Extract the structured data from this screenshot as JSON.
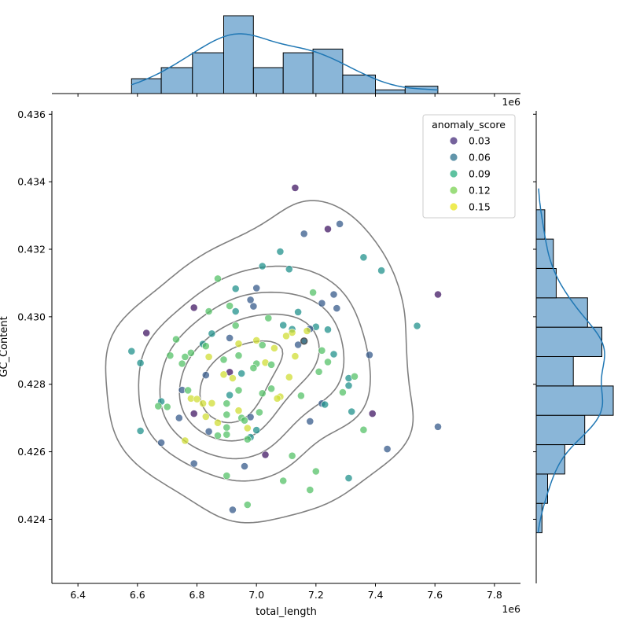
{
  "chart_data": {
    "type": "scatter",
    "xlabel": "total_length",
    "ylabel": "GC_Content",
    "x_offset_label": "1e6",
    "xlim": [
      6.3124,
      7.8876
    ],
    "ylim": [
      0.4221,
      0.4361
    ],
    "x_ticks": [
      6.4,
      6.6,
      6.8,
      7.0,
      7.2,
      7.4,
      7.6,
      7.8
    ],
    "x_tick_labels": [
      "6.4",
      "6.6",
      "6.8",
      "7.0",
      "7.2",
      "7.4",
      "7.6",
      "7.8"
    ],
    "y_ticks": [
      0.424,
      0.426,
      0.428,
      0.43,
      0.432,
      0.434,
      0.436
    ],
    "y_tick_labels": [
      "0.424",
      "0.426",
      "0.428",
      "0.430",
      "0.432",
      "0.434",
      "0.436"
    ],
    "legend": {
      "title": "anomaly_score",
      "position": "top-right",
      "entries": [
        {
          "label": "0.03",
          "color": "#472d7b"
        },
        {
          "label": "0.06",
          "color": "#2c728e"
        },
        {
          "label": "0.09",
          "color": "#28ae80"
        },
        {
          "label": "0.12",
          "color": "#7ad151"
        },
        {
          "label": "0.15",
          "color": "#e8e419"
        }
      ]
    },
    "colors": {
      "hist": "#8ab6d8",
      "kde": "#1f77b4",
      "contour": "#808080"
    },
    "marginal_x_hist": {
      "bin_edges": [
        6.58,
        6.68,
        6.785,
        6.89,
        6.99,
        7.09,
        7.19,
        7.29,
        7.4,
        7.5,
        7.61
      ],
      "counts": [
        4,
        7,
        11,
        21,
        7,
        11,
        12,
        5,
        1,
        2
      ]
    },
    "marginal_y_hist": {
      "bin_edges": [
        0.4236,
        0.42447,
        0.42534,
        0.42621,
        0.42708,
        0.42795,
        0.42882,
        0.42969,
        0.43056,
        0.43143,
        0.4323,
        0.43317
      ],
      "counts": [
        2,
        4,
        10,
        17,
        27,
        13,
        23,
        18,
        7,
        6,
        3,
        1
      ]
    },
    "points": [
      [
        7.13,
        0.43382,
        0.03
      ],
      [
        7.28,
        0.43275,
        0.06
      ],
      [
        7.24,
        0.4326,
        0.03
      ],
      [
        7.16,
        0.43246,
        0.06
      ],
      [
        6.63,
        0.42952,
        0.03
      ],
      [
        7.61,
        0.43066,
        0.03
      ],
      [
        7.08,
        0.43193,
        0.09
      ],
      [
        7.36,
        0.43176,
        0.09
      ],
      [
        7.42,
        0.43137,
        0.09
      ],
      [
        7.02,
        0.4315,
        0.09
      ],
      [
        7.11,
        0.43141,
        0.09
      ],
      [
        6.87,
        0.43113,
        0.12
      ],
      [
        7.0,
        0.43085,
        0.06
      ],
      [
        6.93,
        0.43083,
        0.09
      ],
      [
        7.26,
        0.43066,
        0.06
      ],
      [
        7.19,
        0.43072,
        0.12
      ],
      [
        7.22,
        0.4304,
        0.06
      ],
      [
        6.98,
        0.4305,
        0.06
      ],
      [
        6.79,
        0.43027,
        0.03
      ],
      [
        6.84,
        0.43016,
        0.12
      ],
      [
        6.91,
        0.43032,
        0.12
      ],
      [
        7.27,
        0.43025,
        0.06
      ],
      [
        6.99,
        0.43031,
        0.06
      ],
      [
        6.93,
        0.43016,
        0.09
      ],
      [
        7.04,
        0.42996,
        0.12
      ],
      [
        7.14,
        0.43014,
        0.09
      ],
      [
        7.54,
        0.42973,
        0.09
      ],
      [
        7.09,
        0.42975,
        0.09
      ],
      [
        7.2,
        0.4297,
        0.09
      ],
      [
        6.93,
        0.42974,
        0.12
      ],
      [
        7.18,
        0.42964,
        0.06
      ],
      [
        7.24,
        0.42962,
        0.09
      ],
      [
        7.12,
        0.42963,
        0.09
      ],
      [
        7.12,
        0.42953,
        0.15
      ],
      [
        7.17,
        0.42958,
        0.15
      ],
      [
        6.85,
        0.4295,
        0.09
      ],
      [
        7.1,
        0.42943,
        0.15
      ],
      [
        6.91,
        0.42937,
        0.06
      ],
      [
        6.73,
        0.42933,
        0.12
      ],
      [
        7.0,
        0.4293,
        0.15
      ],
      [
        7.16,
        0.42927,
        0.12
      ],
      [
        6.82,
        0.42919,
        0.09
      ],
      [
        6.94,
        0.4292,
        0.15
      ],
      [
        7.14,
        0.42917,
        0.06
      ],
      [
        7.02,
        0.42916,
        0.12
      ],
      [
        6.58,
        0.42898,
        0.09
      ],
      [
        6.83,
        0.42913,
        0.12
      ],
      [
        7.06,
        0.42907,
        0.15
      ],
      [
        7.22,
        0.429,
        0.12
      ],
      [
        7.26,
        0.42889,
        0.09
      ],
      [
        7.38,
        0.42887,
        0.06
      ],
      [
        6.78,
        0.42893,
        0.12
      ],
      [
        6.71,
        0.42885,
        0.12
      ],
      [
        6.76,
        0.42881,
        0.12
      ],
      [
        6.94,
        0.42885,
        0.12
      ],
      [
        7.13,
        0.42883,
        0.15
      ],
      [
        6.84,
        0.42881,
        0.15
      ],
      [
        6.89,
        0.42873,
        0.12
      ],
      [
        7.0,
        0.42861,
        0.12
      ],
      [
        7.03,
        0.42864,
        0.15
      ],
      [
        6.61,
        0.42863,
        0.09
      ],
      [
        6.75,
        0.42861,
        0.12
      ],
      [
        7.24,
        0.42866,
        0.12
      ],
      [
        7.05,
        0.42858,
        0.12
      ],
      [
        6.91,
        0.42836,
        0.03
      ],
      [
        6.95,
        0.42832,
        0.09
      ],
      [
        6.99,
        0.42848,
        0.12
      ],
      [
        7.21,
        0.42837,
        0.12
      ],
      [
        6.89,
        0.42829,
        0.15
      ],
      [
        6.83,
        0.42827,
        0.06
      ],
      [
        7.11,
        0.42821,
        0.15
      ],
      [
        7.31,
        0.42818,
        0.09
      ],
      [
        7.33,
        0.42823,
        0.12
      ],
      [
        6.92,
        0.42818,
        0.15
      ],
      [
        7.31,
        0.42796,
        0.09
      ],
      [
        7.05,
        0.42787,
        0.12
      ],
      [
        6.94,
        0.42782,
        0.12
      ],
      [
        6.75,
        0.42783,
        0.06
      ],
      [
        6.77,
        0.42782,
        0.12
      ],
      [
        7.02,
        0.42773,
        0.12
      ],
      [
        6.91,
        0.42768,
        0.09
      ],
      [
        7.29,
        0.42776,
        0.12
      ],
      [
        7.15,
        0.42766,
        0.12
      ],
      [
        6.78,
        0.42758,
        0.15
      ],
      [
        7.08,
        0.42763,
        0.15
      ],
      [
        6.8,
        0.42756,
        0.15
      ],
      [
        7.22,
        0.42743,
        0.06
      ],
      [
        6.68,
        0.42749,
        0.09
      ],
      [
        6.82,
        0.42743,
        0.15
      ],
      [
        6.85,
        0.42744,
        0.15
      ],
      [
        6.9,
        0.42743,
        0.12
      ],
      [
        7.07,
        0.42758,
        0.15
      ],
      [
        7.23,
        0.4274,
        0.09
      ],
      [
        6.67,
        0.42735,
        0.12
      ],
      [
        6.7,
        0.42733,
        0.12
      ],
      [
        7.39,
        0.42713,
        0.03
      ],
      [
        7.32,
        0.42719,
        0.09
      ],
      [
        7.01,
        0.42717,
        0.12
      ],
      [
        6.94,
        0.42722,
        0.15
      ],
      [
        6.79,
        0.42713,
        0.03
      ],
      [
        6.9,
        0.4271,
        0.12
      ],
      [
        6.95,
        0.427,
        0.12
      ],
      [
        6.83,
        0.42704,
        0.15
      ],
      [
        6.98,
        0.42703,
        0.06
      ],
      [
        6.74,
        0.427,
        0.06
      ],
      [
        6.96,
        0.42693,
        0.12
      ],
      [
        7.18,
        0.4269,
        0.06
      ],
      [
        6.87,
        0.42686,
        0.15
      ],
      [
        6.97,
        0.4267,
        0.15
      ],
      [
        7.0,
        0.42664,
        0.09
      ],
      [
        6.9,
        0.42672,
        0.12
      ],
      [
        7.61,
        0.42674,
        0.06
      ],
      [
        7.36,
        0.42665,
        0.12
      ],
      [
        6.61,
        0.42662,
        0.09
      ],
      [
        6.84,
        0.4266,
        0.06
      ],
      [
        6.87,
        0.42648,
        0.12
      ],
      [
        6.9,
        0.42651,
        0.12
      ],
      [
        6.98,
        0.42643,
        0.09
      ],
      [
        6.97,
        0.42637,
        0.12
      ],
      [
        6.76,
        0.42633,
        0.15
      ],
      [
        6.68,
        0.42627,
        0.06
      ],
      [
        7.44,
        0.42608,
        0.06
      ],
      [
        7.03,
        0.42591,
        0.03
      ],
      [
        7.12,
        0.42588,
        0.12
      ],
      [
        6.79,
        0.42565,
        0.06
      ],
      [
        6.96,
        0.42557,
        0.06
      ],
      [
        7.2,
        0.42542,
        0.12
      ],
      [
        6.9,
        0.42529,
        0.12
      ],
      [
        7.31,
        0.42522,
        0.09
      ],
      [
        7.09,
        0.42514,
        0.12
      ],
      [
        7.18,
        0.42487,
        0.12
      ],
      [
        6.97,
        0.42443,
        0.12
      ],
      [
        6.92,
        0.42428,
        0.06
      ],
      [
        7.16,
        0.42928,
        0.06
      ]
    ]
  }
}
